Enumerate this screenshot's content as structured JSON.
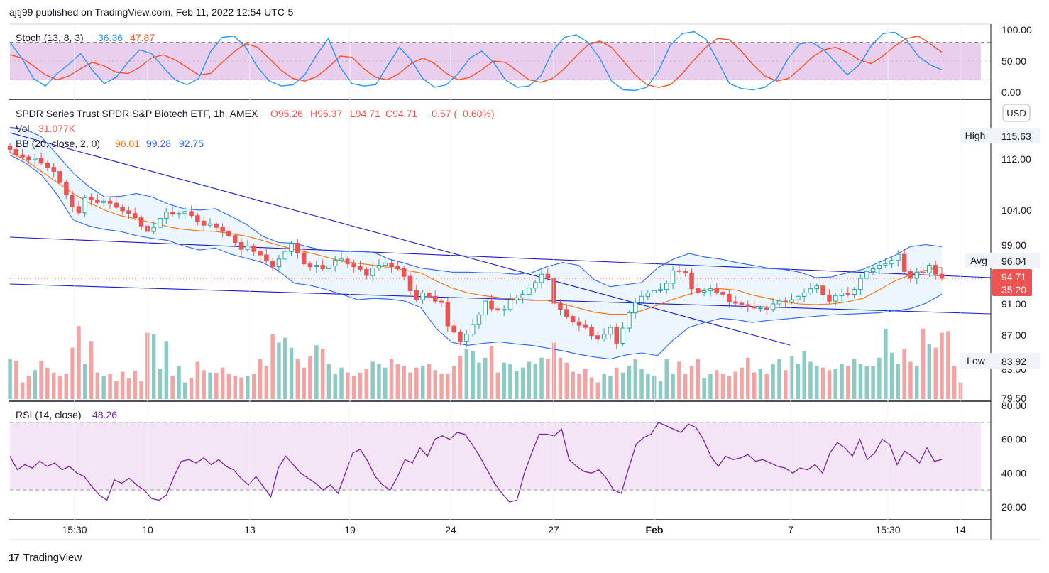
{
  "header": {
    "published": "ajtj99 published on TradingView.com, Feb 11, 2022 12:54 UTC-5"
  },
  "footer": {
    "logo_mark": "17",
    "brand": "TradingView"
  },
  "colors": {
    "up": "#26a69a",
    "down": "#ef5350",
    "vol_up": "#8ccbc4",
    "vol_down": "#f3a3a1",
    "bb_basis": "#ff6d00",
    "bb_band": "#2962ff",
    "trend": "#1a1acc",
    "stoch_k": "#2196f3",
    "stoch_d": "#f4511e",
    "rsi": "#7b1fa2",
    "stoch_fill": "#e1bee7",
    "rsi_fill": "#f3e5f5",
    "bb_fill": "#e3f2fd"
  },
  "stoch": {
    "label": "Stoch (13, 8, 3)",
    "k_value": "36.36",
    "d_value": "47.87",
    "ticks": [
      "100.00",
      "50.00",
      "0.00"
    ],
    "k": [
      80,
      55,
      22,
      10,
      30,
      45,
      62,
      35,
      14,
      24,
      48,
      68,
      62,
      40,
      20,
      12,
      22,
      65,
      88,
      90,
      72,
      40,
      18,
      10,
      12,
      28,
      60,
      86,
      40,
      14,
      10,
      12,
      42,
      72,
      52,
      22,
      8,
      12,
      30,
      55,
      66,
      48,
      20,
      8,
      10,
      26,
      66,
      88,
      92,
      80,
      55,
      18,
      4,
      3,
      8,
      35,
      76,
      94,
      97,
      85,
      50,
      14,
      6,
      4,
      8,
      22,
      55,
      78,
      80,
      68,
      48,
      28,
      44,
      74,
      94,
      96,
      84,
      58,
      44,
      36
    ],
    "d": [
      60,
      55,
      42,
      28,
      20,
      26,
      38,
      48,
      42,
      32,
      30,
      40,
      55,
      60,
      52,
      40,
      28,
      30,
      48,
      65,
      78,
      72,
      54,
      35,
      22,
      18,
      25,
      40,
      58,
      56,
      38,
      24,
      20,
      30,
      46,
      55,
      46,
      30,
      20,
      24,
      36,
      50,
      48,
      34,
      20,
      16,
      22,
      38,
      58,
      76,
      82,
      72,
      50,
      28,
      12,
      8,
      12,
      30,
      52,
      72,
      86,
      84,
      66,
      44,
      26,
      18,
      22,
      38,
      56,
      68,
      72,
      64,
      52,
      46,
      58,
      74,
      86,
      90,
      78,
      64
    ]
  },
  "price": {
    "title": "SPDR Series Trust SPDR S&P Biotech ETF, 1h, AMEX",
    "o": "O95.26",
    "h": "H95.37",
    "l": "L94.71",
    "c": "C94.71",
    "chg": "−0.57 (−0.60%)",
    "vol_label": "Vol",
    "vol_value": "31.077K",
    "bb_label": "BB (20, close, 2, 0)",
    "bb_basis": "96.01",
    "bb_upper": "99.28",
    "bb_lower": "92.75",
    "currency": "USD",
    "ticks": [
      "112.00",
      "104.00",
      "99.00",
      "91.00",
      "87.00",
      "83.00",
      "79.50"
    ],
    "high_label": "High",
    "high_value": "115.63",
    "avg_label": "Avg",
    "avg_value": "96.04",
    "last_value": "94.71",
    "countdown": "35:20",
    "low_label": "Low",
    "low_value": "83.92",
    "closes": [
      113.4,
      112.6,
      112.3,
      111.9,
      112.1,
      111.4,
      110.8,
      110.2,
      108.6,
      106.8,
      105.1,
      104.2,
      106.4,
      106.1,
      105.7,
      105.9,
      105.6,
      105.0,
      104.5,
      104.1,
      103.5,
      102.3,
      101.5,
      102.1,
      103.4,
      104.3,
      104.0,
      104.1,
      104.4,
      103.8,
      103.0,
      102.4,
      102.6,
      102.1,
      101.5,
      100.9,
      99.9,
      98.9,
      99.4,
      98.6,
      98.1,
      97.2,
      96.4,
      97.5,
      98.6,
      99.8,
      98.4,
      96.8,
      96.4,
      96.6,
      96.1,
      96.5,
      97.3,
      97.5,
      96.8,
      96.4,
      96.0,
      95.1,
      96.2,
      96.6,
      96.9,
      96.4,
      96.1,
      95.0,
      92.9,
      91.6,
      92.6,
      92.1,
      91.4,
      91.2,
      87.8,
      86.9,
      85.6,
      86.6,
      88.0,
      89.4,
      91.4,
      90.3,
      90.1,
      90.2,
      91.6,
      91.9,
      92.4,
      93.3,
      94.1,
      95.3,
      94.7,
      91.1,
      90.2,
      89.2,
      88.4,
      87.9,
      87.6,
      86.4,
      85.9,
      86.6,
      87.6,
      85.3,
      87.5,
      89.7,
      91.2,
      92.1,
      92.6,
      92.9,
      93.1,
      94.0,
      95.8,
      95.7,
      95.5,
      93.2,
      92.7,
      92.9,
      93.2,
      92.7,
      92.4,
      91.3,
      91.1,
      90.9,
      90.6,
      90.4,
      90.4,
      90.2,
      91.0,
      91.4,
      91.3,
      91.6,
      92.1,
      92.6,
      93.2,
      93.6,
      92.3,
      91.4,
      92.2,
      92.6,
      92.4,
      93.1,
      94.7,
      95.7,
      96.1,
      96.6,
      96.8,
      97.3,
      98.2,
      95.7,
      94.7,
      95.6,
      95.5,
      96.6,
      95.3,
      94.7
    ],
    "volume": [
      48,
      46,
      20,
      28,
      35,
      46,
      38,
      32,
      28,
      30,
      62,
      88,
      42,
      70,
      32,
      28,
      30,
      22,
      33,
      25,
      34,
      22,
      80,
      78,
      36,
      70,
      28,
      40,
      20,
      25,
      45,
      35,
      32,
      31,
      38,
      30,
      28,
      26,
      28,
      30,
      48,
      40,
      78,
      68,
      74,
      62,
      48,
      38,
      52,
      65,
      60,
      42,
      30,
      38,
      32,
      28,
      32,
      36,
      45,
      42,
      38,
      48,
      42,
      40,
      32,
      38,
      40,
      42,
      35,
      30,
      30,
      40,
      52,
      60,
      58,
      44,
      50,
      64,
      32,
      44,
      42,
      34,
      38,
      45,
      42,
      50,
      48,
      68,
      50,
      44,
      33,
      30,
      36,
      26,
      20,
      30,
      28,
      38,
      32,
      40,
      48,
      36,
      30,
      28,
      22,
      48,
      30,
      45,
      30,
      40,
      48,
      25,
      30,
      35,
      30,
      28,
      33,
      38,
      50,
      32,
      36,
      30,
      42,
      48,
      35,
      52,
      42,
      58,
      45,
      40,
      38,
      35,
      36,
      42,
      40,
      48,
      42,
      40,
      40,
      50,
      85,
      56,
      42,
      60,
      45,
      40,
      85,
      66,
      62,
      80,
      82,
      40,
      20
    ],
    "bb_basis_series": [
      113,
      111.8,
      110.2,
      108.6,
      107,
      105.7,
      104.6,
      103.8,
      103.3,
      102.8,
      102.2,
      101.8,
      101.6,
      101.5,
      101.2,
      100.8,
      100.2,
      99.5,
      98.9,
      98.4,
      97.8,
      97.2,
      96.9,
      96.6,
      96.3,
      95.9,
      95.5,
      94.3,
      93.3,
      92.6,
      92.2,
      91.9,
      91.7,
      91.5,
      91.5,
      91.0,
      90.4,
      89.8,
      89.5,
      89.5,
      90,
      90.8,
      91.7,
      92.4,
      93.0,
      93.2,
      93.0,
      92.3,
      91.8,
      91.3,
      91.0,
      90.9,
      91,
      91.3,
      91.8,
      93.0,
      94.3,
      95.2,
      95.9,
      96.3
    ],
    "bb_upper_series": [
      116.6,
      116.3,
      115.2,
      112.6,
      110,
      108,
      106.5,
      106.6,
      107,
      106.5,
      105.5,
      104.8,
      104.6,
      104.8,
      103.7,
      102.5,
      100.8,
      99.9,
      99.8,
      99.2,
      98.7,
      98.6,
      98.6,
      98.5,
      97.5,
      96.9,
      96.2,
      95.9,
      95.6,
      95.6,
      95.5,
      95.5,
      95.3,
      95.5,
      96.4,
      97.0,
      96.6,
      94.5,
      93.5,
      93.8,
      94.1,
      96.2,
      97.5,
      98.3,
      97.8,
      97.5,
      97.0,
      96.6,
      96.2,
      96.0,
      95.6,
      94.8,
      94.9,
      95.5,
      96.0,
      97.0,
      98.0,
      99.3,
      99.6,
      99.3
    ],
    "bb_lower_series": [
      112.6,
      111.4,
      109.7,
      106.8,
      103.2,
      102.3,
      101.8,
      101.5,
      100.9,
      100.5,
      100.2,
      99.4,
      98.8,
      99.1,
      98.2,
      97.6,
      97.0,
      95.8,
      94.0,
      93.7,
      93.1,
      92.4,
      91.6,
      91.8,
      91.7,
      91.4,
      90.5,
      87.4,
      85.4,
      85.0,
      85.3,
      85.5,
      85.2,
      85.0,
      84.6,
      84.2,
      83.7,
      83.3,
      83.0,
      83.6,
      83.9,
      83.5,
      85.8,
      87.6,
      88.3,
      88.9,
      88.7,
      88.3,
      88.6,
      88.8,
      89.0,
      89.2,
      89.4,
      89.5,
      89.6,
      89.7,
      90.0,
      90.3,
      91.1,
      92.4
    ]
  },
  "rsi": {
    "label": "RSI (14, close)",
    "value": "48.26",
    "ticks": [
      "80.00",
      "60.00",
      "40.00",
      "20.00"
    ],
    "values": [
      50,
      42,
      45,
      43,
      47,
      44,
      46,
      42,
      44,
      40,
      38,
      32,
      27,
      24,
      36,
      34,
      37,
      33,
      30,
      25,
      24,
      27,
      38,
      47,
      48,
      46,
      49,
      45,
      48,
      44,
      42,
      37,
      33,
      38,
      32,
      26,
      43,
      50,
      45,
      40,
      37,
      34,
      30,
      33,
      28,
      40,
      52,
      54,
      47,
      38,
      33,
      30,
      38,
      48,
      46,
      55,
      50,
      60,
      62,
      60,
      64,
      63,
      57,
      50,
      42,
      34,
      28,
      23,
      24,
      40,
      52,
      63,
      63,
      62,
      66,
      48,
      44,
      41,
      40,
      42,
      37,
      30,
      28,
      43,
      57,
      61,
      63,
      70,
      68,
      66,
      64,
      69,
      67,
      60,
      50,
      44,
      50,
      48,
      49,
      51,
      47,
      48,
      46,
      44,
      43,
      40,
      43,
      42,
      45,
      40,
      52,
      58,
      55,
      50,
      60,
      48,
      52,
      60,
      57,
      45,
      53,
      50,
      46,
      55,
      47,
      48
    ]
  },
  "xaxis": {
    "labels": [
      "15:30",
      "10",
      "13",
      "19",
      "24",
      "27",
      "Feb",
      "7",
      "15:30",
      "14"
    ]
  }
}
